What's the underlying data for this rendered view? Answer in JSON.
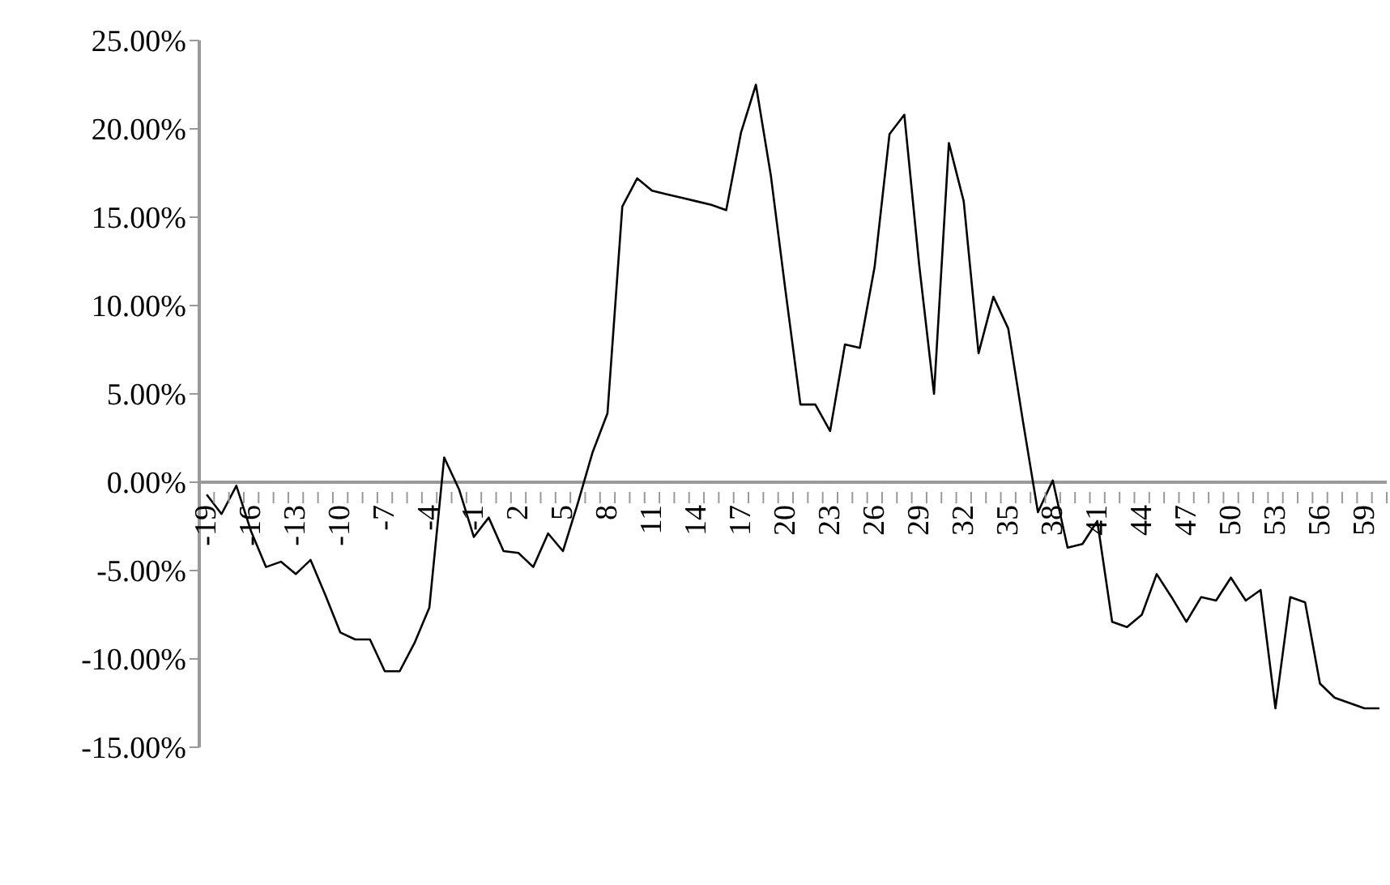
{
  "chart_data": {
    "type": "line",
    "categories": [
      "-19",
      null,
      null,
      "-16",
      null,
      null,
      "-13",
      null,
      null,
      "-10",
      null,
      null,
      "-7",
      null,
      null,
      "-4",
      null,
      null,
      "-1",
      null,
      null,
      "2",
      null,
      null,
      "5",
      null,
      null,
      "8",
      null,
      null,
      "11",
      null,
      null,
      "14",
      null,
      null,
      "17",
      null,
      null,
      "20",
      null,
      null,
      "23",
      null,
      null,
      "26",
      null,
      null,
      "29",
      null,
      null,
      "32",
      null,
      null,
      "35",
      null,
      null,
      "38",
      null,
      null,
      "41",
      null,
      null,
      "44",
      null,
      null,
      "47",
      null,
      null,
      "50",
      null,
      null,
      "53",
      null,
      null,
      "56",
      null,
      null,
      "59",
      null
    ],
    "series": [
      {
        "color": "#000000",
        "values": [
          -0.7,
          -1.8,
          -0.2,
          -2.8,
          -4.8,
          -4.5,
          -5.2,
          -4.4,
          -6.4,
          -8.5,
          -8.9,
          -8.9,
          -10.7,
          -10.7,
          -9.1,
          -7.1,
          1.4,
          -0.4,
          -3.1,
          -2.0,
          -3.9,
          -4.0,
          -4.8,
          -2.9,
          -3.9,
          -1.2,
          1.7,
          3.9,
          15.6,
          17.2,
          16.5,
          16.3,
          16.1,
          15.9,
          15.7,
          15.4,
          19.8,
          22.5,
          17.4,
          10.8,
          4.4,
          4.4,
          2.9,
          7.8,
          7.6,
          12.2,
          19.7,
          20.8,
          12.3,
          5.0,
          19.2,
          15.9,
          7.3,
          10.5,
          8.7,
          3.4,
          -1.7,
          0.1,
          -3.7,
          -3.5,
          -2.2,
          -7.9,
          -8.2,
          -7.5,
          -5.2,
          -6.5,
          -7.9,
          -6.5,
          -6.7,
          -5.4,
          -6.7,
          -6.1,
          -12.8,
          -6.5,
          -6.8,
          -11.4,
          -12.2,
          -12.5,
          -12.8,
          -12.8
        ]
      }
    ],
    "ylim": [
      -15,
      25
    ],
    "yticks": [
      {
        "value": -15,
        "label": "-15.00%"
      },
      {
        "value": -10,
        "label": "-10.00%"
      },
      {
        "value": -5,
        "label": "-5.00%"
      },
      {
        "value": 0,
        "label": "0.00%"
      },
      {
        "value": 5,
        "label": "5.00%"
      },
      {
        "value": 10,
        "label": "10.00%"
      },
      {
        "value": 15,
        "label": "15.00%"
      },
      {
        "value": 20,
        "label": "20.00%"
      },
      {
        "value": 25,
        "label": "25.00%"
      }
    ],
    "marker": "none"
  }
}
